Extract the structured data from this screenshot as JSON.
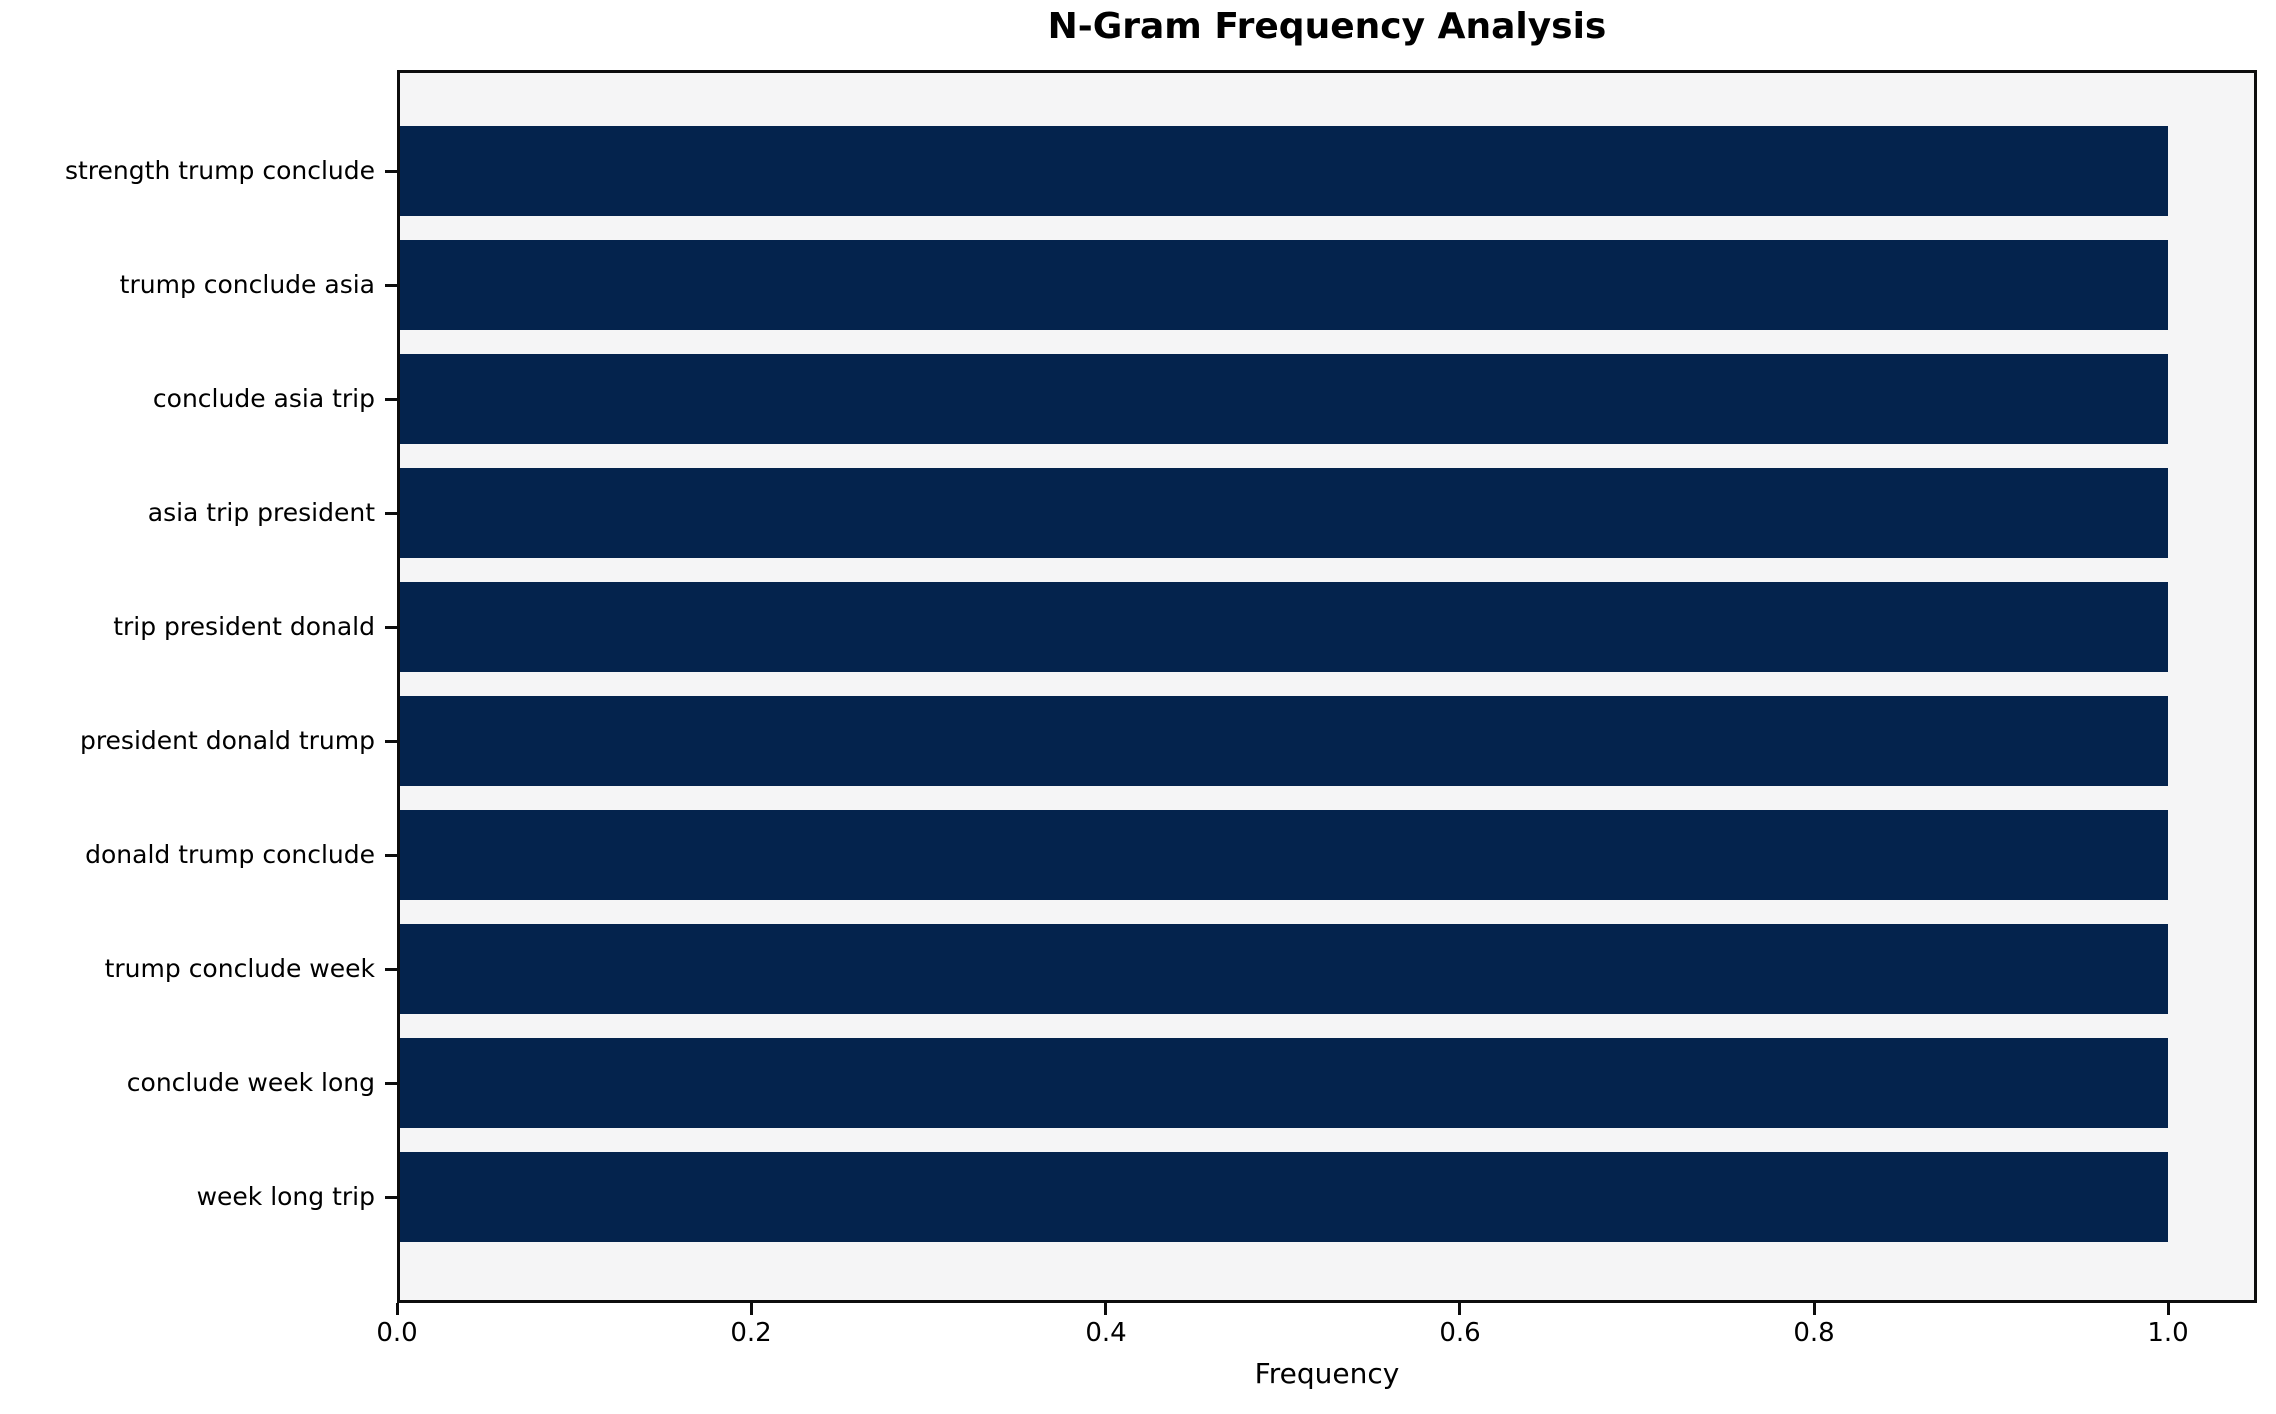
{
  "chart_data": {
    "type": "bar",
    "orientation": "horizontal",
    "title": "N-Gram Frequency Analysis",
    "xlabel": "Frequency",
    "ylabel": "",
    "categories": [
      "strength trump conclude",
      "trump conclude asia",
      "conclude asia trip",
      "asia trip president",
      "trip president donald",
      "president donald trump",
      "donald trump conclude",
      "trump conclude week",
      "conclude week long",
      "week long trip"
    ],
    "values": [
      1.0,
      1.0,
      1.0,
      1.0,
      1.0,
      1.0,
      1.0,
      1.0,
      1.0,
      1.0
    ],
    "xlim": [
      0,
      1.05
    ],
    "xticks": [
      0.0,
      0.2,
      0.4,
      0.6,
      0.8,
      1.0
    ],
    "xtick_labels": [
      "0.0",
      "0.2",
      "0.4",
      "0.6",
      "0.8",
      "1.0"
    ],
    "grid": false,
    "legend": null,
    "colors": {
      "bar": "#04234d",
      "plot_background": "#f5f5f6",
      "figure_background": "#ffffff",
      "spine": "#0d0d0d",
      "text": "#000000"
    }
  }
}
